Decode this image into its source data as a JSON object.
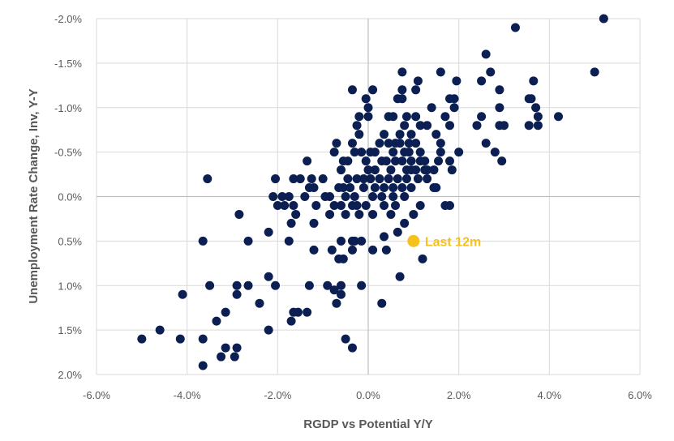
{
  "chart_data": {
    "type": "scatter",
    "xlabel": "RGDP vs Potential Y/Y",
    "ylabel": "Unemployment Rate Change, Inv, Y-Y",
    "xlim": [
      -6.0,
      6.0
    ],
    "ylim": [
      -2.0,
      2.0
    ],
    "y_inverted": true,
    "grid": true,
    "x_ticks": [
      "-6.0%",
      "-4.0%",
      "-2.0%",
      "0.0%",
      "2.0%",
      "4.0%",
      "6.0%"
    ],
    "y_ticks": [
      "-2.0%",
      "-1.5%",
      "-1.0%",
      "-0.5%",
      "0.0%",
      "0.5%",
      "1.0%",
      "1.5%",
      "2.0%"
    ],
    "colors": {
      "points": "#0b1f52",
      "highlight": "#f5c11c",
      "grid": "#d9d9d9",
      "text": "#595959"
    },
    "highlight": {
      "label": "Last 12m",
      "x": 1.0,
      "y": 0.5
    },
    "points": [
      [
        5.2,
        -2.0
      ],
      [
        3.25,
        -1.9
      ],
      [
        2.6,
        -1.6
      ],
      [
        5.0,
        -1.4
      ],
      [
        2.7,
        -1.4
      ],
      [
        3.65,
        -1.3
      ],
      [
        2.5,
        -1.3
      ],
      [
        1.95,
        -1.3
      ],
      [
        3.55,
        -1.1
      ],
      [
        3.6,
        -1.1
      ],
      [
        2.9,
        -1.2
      ],
      [
        3.7,
        -1.0
      ],
      [
        3.75,
        -0.9
      ],
      [
        4.2,
        -0.9
      ],
      [
        3.75,
        -0.8
      ],
      [
        3.55,
        -0.8
      ],
      [
        3.0,
        -0.8
      ],
      [
        2.9,
        -0.8
      ],
      [
        2.9,
        -1.0
      ],
      [
        2.4,
        -0.8
      ],
      [
        2.5,
        -0.9
      ],
      [
        2.6,
        -0.6
      ],
      [
        2.8,
        -0.5
      ],
      [
        2.95,
        -0.4
      ],
      [
        1.1,
        -1.3
      ],
      [
        1.05,
        -1.2
      ],
      [
        1.6,
        -1.4
      ],
      [
        1.9,
        -1.1
      ],
      [
        1.8,
        -1.1
      ],
      [
        1.9,
        -1.0
      ],
      [
        1.4,
        -1.0
      ],
      [
        1.7,
        -0.9
      ],
      [
        1.8,
        -0.8
      ],
      [
        2.0,
        -0.5
      ],
      [
        1.85,
        -0.3
      ],
      [
        1.8,
        -0.4
      ],
      [
        1.5,
        -0.1
      ],
      [
        1.7,
        0.1
      ],
      [
        1.8,
        0.1
      ],
      [
        0.75,
        -1.4
      ],
      [
        0.75,
        -1.2
      ],
      [
        0.65,
        -1.1
      ],
      [
        0.75,
        -1.1
      ],
      [
        0.1,
        -1.2
      ],
      [
        -0.35,
        -1.2
      ],
      [
        -0.05,
        -1.1
      ],
      [
        0.0,
        -1.0
      ],
      [
        0.0,
        -0.9
      ],
      [
        -0.2,
        -0.9
      ],
      [
        -0.25,
        -0.8
      ],
      [
        0.45,
        -0.9
      ],
      [
        0.55,
        -0.9
      ],
      [
        0.85,
        -0.9
      ],
      [
        1.05,
        -0.9
      ],
      [
        1.15,
        -0.8
      ],
      [
        1.3,
        -0.8
      ],
      [
        1.5,
        -0.7
      ],
      [
        1.6,
        -0.6
      ],
      [
        1.6,
        -0.5
      ],
      [
        1.55,
        -0.4
      ],
      [
        1.45,
        -0.3
      ],
      [
        1.3,
        -0.3
      ],
      [
        1.25,
        -0.4
      ],
      [
        1.15,
        -0.5
      ],
      [
        1.05,
        -0.6
      ],
      [
        0.95,
        -0.7
      ],
      [
        0.8,
        -0.8
      ],
      [
        0.7,
        -0.7
      ],
      [
        0.6,
        -0.6
      ],
      [
        0.55,
        -0.5
      ],
      [
        0.45,
        -0.6
      ],
      [
        0.35,
        -0.7
      ],
      [
        0.25,
        -0.6
      ],
      [
        0.15,
        -0.5
      ],
      [
        0.05,
        -0.5
      ],
      [
        -0.05,
        -0.4
      ],
      [
        -0.15,
        -0.5
      ],
      [
        -0.3,
        -0.5
      ],
      [
        -0.35,
        -0.6
      ],
      [
        -0.2,
        -0.7
      ],
      [
        -0.45,
        -0.4
      ],
      [
        -0.55,
        -0.4
      ],
      [
        -0.6,
        -0.3
      ],
      [
        -0.45,
        -0.2
      ],
      [
        -0.25,
        -0.2
      ],
      [
        -0.1,
        -0.1
      ],
      [
        0.05,
        -0.2
      ],
      [
        0.15,
        -0.3
      ],
      [
        0.3,
        -0.4
      ],
      [
        0.4,
        -0.4
      ],
      [
        0.5,
        -0.3
      ],
      [
        0.6,
        -0.4
      ],
      [
        0.75,
        -0.4
      ],
      [
        0.85,
        -0.3
      ],
      [
        0.95,
        -0.4
      ],
      [
        1.05,
        -0.3
      ],
      [
        1.15,
        -0.4
      ],
      [
        1.25,
        -0.3
      ],
      [
        0.9,
        -0.5
      ],
      [
        0.8,
        -0.5
      ],
      [
        0.7,
        -0.6
      ],
      [
        0.9,
        -0.6
      ],
      [
        0.25,
        -0.2
      ],
      [
        0.35,
        -0.1
      ],
      [
        0.45,
        -0.2
      ],
      [
        0.55,
        -0.1
      ],
      [
        0.65,
        -0.2
      ],
      [
        0.75,
        -0.1
      ],
      [
        0.85,
        -0.2
      ],
      [
        0.95,
        -0.3
      ],
      [
        1.1,
        -0.2
      ],
      [
        1.3,
        -0.2
      ],
      [
        1.45,
        -0.1
      ],
      [
        0.15,
        -0.1
      ],
      [
        0.0,
        -0.3
      ],
      [
        -0.1,
        -0.2
      ],
      [
        -0.4,
        -0.1
      ],
      [
        -0.55,
        -0.1
      ],
      [
        -0.65,
        -0.1
      ],
      [
        -0.75,
        -0.5
      ],
      [
        -0.7,
        -0.6
      ],
      [
        0.3,
        0.0
      ],
      [
        0.1,
        0.0
      ],
      [
        -0.05,
        0.1
      ],
      [
        0.35,
        0.1
      ],
      [
        0.55,
        0.0
      ],
      [
        0.6,
        0.1
      ],
      [
        0.8,
        0.0
      ],
      [
        0.95,
        -0.1
      ],
      [
        1.15,
        0.1
      ],
      [
        -0.3,
        0.0
      ],
      [
        -0.35,
        0.1
      ],
      [
        -0.5,
        0.0
      ],
      [
        -0.6,
        0.1
      ],
      [
        -0.75,
        0.1
      ],
      [
        -0.85,
        0.0
      ],
      [
        -0.95,
        0.0
      ],
      [
        -1.0,
        -0.2
      ],
      [
        -1.25,
        -0.2
      ],
      [
        -1.2,
        -0.1
      ],
      [
        -1.3,
        -0.1
      ],
      [
        -1.4,
        0.0
      ],
      [
        -1.5,
        -0.2
      ],
      [
        -1.65,
        -0.2
      ],
      [
        -1.75,
        0.0
      ],
      [
        -1.9,
        0.0
      ],
      [
        -2.1,
        0.0
      ],
      [
        -2.05,
        -0.2
      ],
      [
        -1.35,
        -0.4
      ],
      [
        -3.55,
        -0.2
      ],
      [
        -1.85,
        0.1
      ],
      [
        -2.0,
        0.1
      ],
      [
        -1.65,
        0.1
      ],
      [
        -1.6,
        0.2
      ],
      [
        -1.7,
        0.3
      ],
      [
        -1.15,
        0.1
      ],
      [
        -0.85,
        0.2
      ],
      [
        -0.5,
        0.2
      ],
      [
        -0.25,
        0.1
      ],
      [
        -0.2,
        0.2
      ],
      [
        0.1,
        0.2
      ],
      [
        0.5,
        0.2
      ],
      [
        0.8,
        0.3
      ],
      [
        1.0,
        0.2
      ],
      [
        -0.35,
        0.5
      ],
      [
        -0.3,
        0.5
      ],
      [
        -0.15,
        0.5
      ],
      [
        0.1,
        0.6
      ],
      [
        0.35,
        0.45
      ],
      [
        0.4,
        0.6
      ],
      [
        0.65,
        0.4
      ],
      [
        1.2,
        0.7
      ],
      [
        0.7,
        0.9
      ],
      [
        -2.2,
        0.4
      ],
      [
        -1.75,
        0.5
      ],
      [
        -1.2,
        0.3
      ],
      [
        -1.2,
        0.6
      ],
      [
        -0.8,
        0.6
      ],
      [
        -0.6,
        0.5
      ],
      [
        -0.65,
        0.7
      ],
      [
        -0.55,
        0.7
      ],
      [
        -0.35,
        0.6
      ],
      [
        -2.85,
        0.2
      ],
      [
        -2.65,
        0.5
      ],
      [
        -3.65,
        0.5
      ],
      [
        -1.3,
        1.0
      ],
      [
        -0.9,
        1.0
      ],
      [
        -0.75,
        1.05
      ],
      [
        -0.6,
        1.0
      ],
      [
        -0.6,
        1.1
      ],
      [
        -0.7,
        1.2
      ],
      [
        -0.15,
        1.0
      ],
      [
        0.3,
        1.2
      ],
      [
        -2.2,
        0.9
      ],
      [
        -2.05,
        1.0
      ],
      [
        -2.4,
        1.2
      ],
      [
        -2.65,
        1.0
      ],
      [
        -2.9,
        1.0
      ],
      [
        -2.9,
        1.1
      ],
      [
        -3.5,
        1.0
      ],
      [
        -4.1,
        1.1
      ],
      [
        -3.15,
        1.3
      ],
      [
        -3.35,
        1.4
      ],
      [
        -1.65,
        1.3
      ],
      [
        -1.55,
        1.3
      ],
      [
        -1.35,
        1.3
      ],
      [
        -1.7,
        1.4
      ],
      [
        -2.2,
        1.5
      ],
      [
        -4.6,
        1.5
      ],
      [
        -5.0,
        1.6
      ],
      [
        -4.15,
        1.6
      ],
      [
        -3.65,
        1.6
      ],
      [
        -3.15,
        1.7
      ],
      [
        -2.9,
        1.7
      ],
      [
        -3.25,
        1.8
      ],
      [
        -2.95,
        1.8
      ],
      [
        -3.65,
        1.9
      ],
      [
        -0.5,
        1.6
      ],
      [
        -0.35,
        1.7
      ]
    ]
  }
}
